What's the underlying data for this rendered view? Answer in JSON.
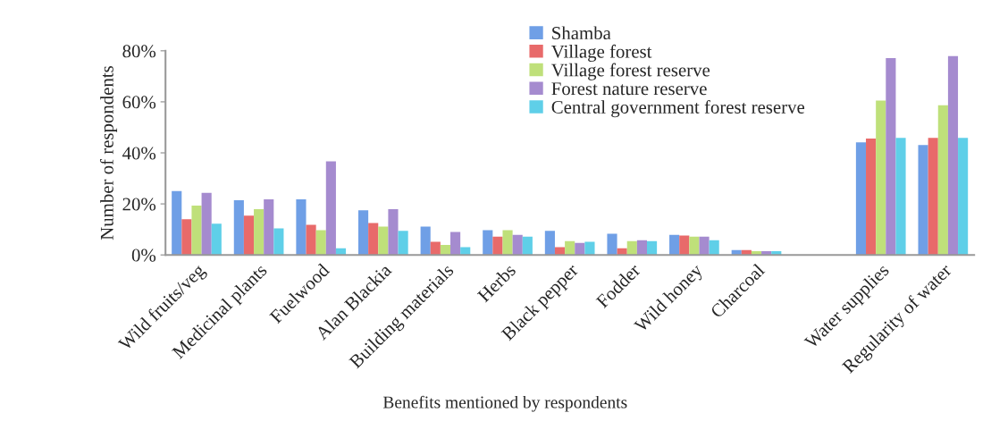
{
  "chart_data": {
    "type": "bar",
    "xlabel": "Benefits mentioned by respondents",
    "ylabel": "Number of respondents",
    "categories": [
      "Wild fruits/veg",
      "Medicinal plants",
      "Fuelwood",
      "Alan Blackia",
      "Building materials",
      "Herbs",
      "Black pepper",
      "Fodder",
      "Wild honey",
      "Charcoal",
      null,
      "Water supplies",
      "Regularity of water"
    ],
    "series": [
      {
        "name": "Shamba",
        "color": "#6f9fe6",
        "values": [
          25.0,
          21.4,
          21.8,
          17.5,
          11.1,
          9.7,
          9.4,
          8.3,
          7.9,
          1.9,
          null,
          44.1,
          43.1
        ]
      },
      {
        "name": "Village forest",
        "color": "#e86a6a",
        "values": [
          14.0,
          15.4,
          11.8,
          12.5,
          5.1,
          7.2,
          3.0,
          2.6,
          7.6,
          1.9,
          null,
          45.6,
          45.9
        ]
      },
      {
        "name": "Village forest reserve",
        "color": "#bfe07a",
        "values": [
          19.3,
          17.9,
          9.7,
          11.1,
          3.9,
          9.7,
          5.4,
          5.4,
          7.2,
          1.5,
          null,
          60.5,
          58.7
        ]
      },
      {
        "name": "Forest nature reserve",
        "color": "#a58bcf",
        "values": [
          24.3,
          21.8,
          36.7,
          17.9,
          9.0,
          7.9,
          4.7,
          5.8,
          7.2,
          1.5,
          null,
          77.1,
          77.9
        ]
      },
      {
        "name": "Central government forest reserve",
        "color": "#5fcfe8",
        "values": [
          12.2,
          10.4,
          2.6,
          9.4,
          3.0,
          7.2,
          5.1,
          5.4,
          5.8,
          1.5,
          null,
          45.9,
          45.9
        ]
      }
    ],
    "ylim": [
      0,
      80
    ],
    "yticks": [
      {
        "value": 0,
        "label": "0%"
      },
      {
        "value": 20,
        "label": "20%"
      },
      {
        "value": 40,
        "label": "40%"
      },
      {
        "value": 60,
        "label": "60%"
      },
      {
        "value": 80,
        "label": "80%"
      }
    ],
    "grid": false,
    "legend": "top"
  }
}
